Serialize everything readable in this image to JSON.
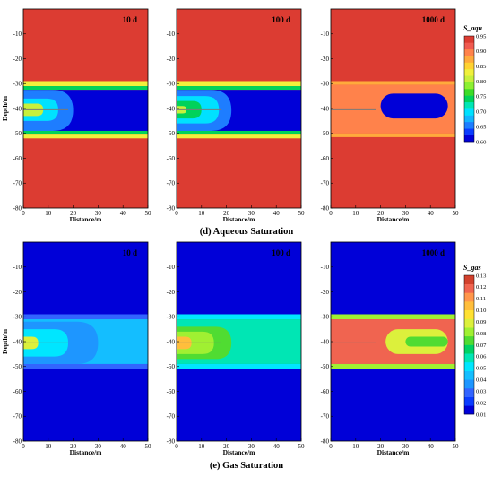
{
  "chart_data": [
    {
      "type": "heatmap",
      "title": "(d) Aqueous Saturation",
      "quantity": "S_aqu",
      "xlabel": "Distance/m",
      "ylabel": "Depth/m",
      "xlim": [
        0,
        50
      ],
      "ylim": [
        -80,
        0
      ],
      "xticks": [
        0,
        10,
        20,
        30,
        40,
        50
      ],
      "yticks": [
        -10,
        -20,
        -30,
        -40,
        -50,
        -60,
        -70,
        -80
      ],
      "colorbar": {
        "ticks": [
          0.95,
          0.9,
          0.85,
          0.8,
          0.75,
          0.7,
          0.65,
          0.6
        ],
        "colors": [
          "#0000d8",
          "#0a3cff",
          "#1e7dff",
          "#14b4ff",
          "#00e1ff",
          "#00e6b4",
          "#00d25a",
          "#3cdc28",
          "#8cf032",
          "#c8f03c",
          "#f0f03c",
          "#ffd232",
          "#ffaa3c",
          "#ff824b",
          "#f05a50",
          "#dc3c32"
        ]
      },
      "panels": [
        {
          "time": "10 d",
          "background": 0.95,
          "layers": [
            {
              "depth_top": -29,
              "depth_bottom": -31,
              "value": 0.83
            },
            {
              "depth_top": -31,
              "depth_bottom": -32.5,
              "value": 0.74
            },
            {
              "depth_top": -32.5,
              "depth_bottom": -49,
              "value": 0.62
            },
            {
              "depth_top": -49,
              "depth_bottom": -50.5,
              "value": 0.74
            },
            {
              "depth_top": -50.5,
              "depth_bottom": -52,
              "value": 0.83
            }
          ],
          "plume": [
            {
              "x_end": 20,
              "depth_top": -32.5,
              "depth_bottom": -49,
              "value": 0.66
            },
            {
              "x_end": 14,
              "depth_top": -36,
              "depth_bottom": -45,
              "value": 0.7
            },
            {
              "x_end": 8,
              "depth_top": -38,
              "depth_bottom": -43,
              "value": 0.8
            }
          ]
        },
        {
          "time": "100 d",
          "background": 0.95,
          "layers": [
            {
              "depth_top": -29,
              "depth_bottom": -31,
              "value": 0.83
            },
            {
              "depth_top": -31,
              "depth_bottom": -32.5,
              "value": 0.74
            },
            {
              "depth_top": -32.5,
              "depth_bottom": -49,
              "value": 0.62
            },
            {
              "depth_top": -49,
              "depth_bottom": -50.5,
              "value": 0.74
            },
            {
              "depth_top": -50.5,
              "depth_bottom": -52,
              "value": 0.83
            }
          ],
          "plume": [
            {
              "x_end": 22,
              "depth_top": -32.5,
              "depth_bottom": -49,
              "value": 0.66
            },
            {
              "x_end": 17,
              "depth_top": -35,
              "depth_bottom": -46,
              "value": 0.7
            },
            {
              "x_end": 10,
              "depth_top": -37,
              "depth_bottom": -44,
              "value": 0.75
            },
            {
              "x_end": 4,
              "depth_top": -39,
              "depth_bottom": -42,
              "value": 0.8
            }
          ]
        },
        {
          "time": "1000 d",
          "background": 0.95,
          "layers": [
            {
              "depth_top": -29,
              "depth_bottom": -30.5,
              "value": 0.88
            },
            {
              "depth_top": -30.5,
              "depth_bottom": -50,
              "value": 0.9
            },
            {
              "depth_top": -50,
              "depth_bottom": -51.5,
              "value": 0.88
            }
          ],
          "plume": [
            {
              "x_start": 20,
              "x_end": 47,
              "depth_top": -34,
              "depth_bottom": -44,
              "value": 0.62
            }
          ]
        }
      ]
    },
    {
      "type": "heatmap",
      "title": "(e) Gas Saturation",
      "quantity": "S_gas",
      "xlabel": "Distance/m",
      "ylabel": "Depth/m",
      "xlim": [
        0,
        50
      ],
      "ylim": [
        -80,
        0
      ],
      "xticks": [
        0,
        10,
        20,
        30,
        40,
        50
      ],
      "yticks": [
        -10,
        -20,
        -30,
        -40,
        -50,
        -60,
        -70,
        -80
      ],
      "colorbar": {
        "ticks": [
          0.13,
          0.12,
          0.11,
          0.1,
          0.09,
          0.08,
          0.07,
          0.06,
          0.05,
          0.04,
          0.03,
          0.02,
          0.01
        ],
        "colors": [
          "#0000d8",
          "#0a3cff",
          "#3264ff",
          "#1e96ff",
          "#14beff",
          "#00e6ff",
          "#00e6b4",
          "#00d264",
          "#50dc32",
          "#a0f032",
          "#dcf03c",
          "#ffe132",
          "#ffbe3c",
          "#ff964b",
          "#f06450",
          "#d2412d"
        ]
      },
      "panels": [
        {
          "time": "10 d",
          "background": 0.01,
          "layers": [
            {
              "depth_top": -29,
              "depth_bottom": -31,
              "value": 0.03
            },
            {
              "depth_top": -31,
              "depth_bottom": -49,
              "value": 0.045
            },
            {
              "depth_top": -49,
              "depth_bottom": -51,
              "value": 0.03
            }
          ],
          "plume": [
            {
              "x_end": 30,
              "depth_top": -32,
              "depth_bottom": -49,
              "value": 0.04
            },
            {
              "x_end": 18,
              "depth_top": -35,
              "depth_bottom": -46,
              "value": 0.05
            },
            {
              "x_end": 6,
              "depth_top": -38,
              "depth_bottom": -43,
              "value": 0.09
            }
          ]
        },
        {
          "time": "100 d",
          "background": 0.01,
          "layers": [
            {
              "depth_top": -29,
              "depth_bottom": -31,
              "value": 0.05
            },
            {
              "depth_top": -31,
              "depth_bottom": -49,
              "value": 0.06
            },
            {
              "depth_top": -49,
              "depth_bottom": -51,
              "value": 0.05
            }
          ],
          "plume": [
            {
              "x_end": 22,
              "depth_top": -34,
              "depth_bottom": -47,
              "value": 0.07
            },
            {
              "x_end": 15,
              "depth_top": -36,
              "depth_bottom": -45,
              "value": 0.08
            },
            {
              "x_end": 6,
              "depth_top": -38,
              "depth_bottom": -43,
              "value": 0.1
            }
          ]
        },
        {
          "time": "1000 d",
          "background": 0.01,
          "layers": [
            {
              "depth_top": -29,
              "depth_bottom": -31,
              "value": 0.08
            },
            {
              "depth_top": -31,
              "depth_bottom": -49,
              "value": 0.12
            },
            {
              "depth_top": -49,
              "depth_bottom": -51,
              "value": 0.08
            }
          ],
          "plume": [
            {
              "x_start": 22,
              "x_end": 47,
              "depth_top": -35,
              "depth_bottom": -45,
              "value": 0.09
            },
            {
              "x_start": 30,
              "x_end": 47,
              "depth_top": -38,
              "depth_bottom": -42,
              "value": 0.07
            }
          ]
        }
      ]
    }
  ]
}
